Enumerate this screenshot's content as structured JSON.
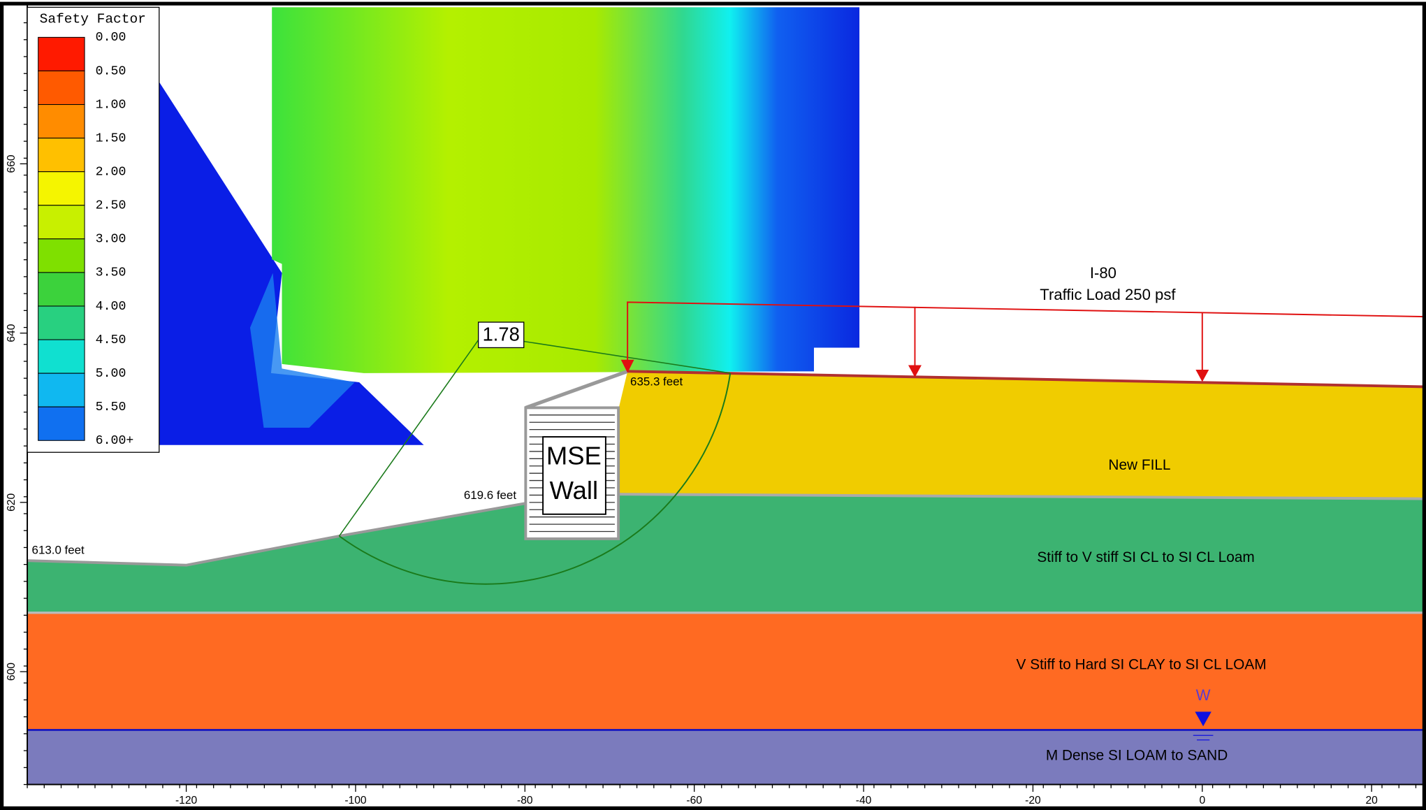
{
  "legend": {
    "title": "Safety Factor",
    "labels": [
      "0.00",
      "0.50",
      "1.00",
      "1.50",
      "2.00",
      "2.50",
      "3.00",
      "3.50",
      "4.00",
      "4.50",
      "5.00",
      "5.50",
      "6.00+"
    ],
    "colors": [
      "#ff1a00",
      "#ff5a00",
      "#ff8c00",
      "#ffc000",
      "#f5f500",
      "#c8f000",
      "#7fe000",
      "#3cd23c",
      "#28d080",
      "#10e0d0",
      "#10b8f0",
      "#1070f0"
    ]
  },
  "axes": {
    "x_ticks": [
      -120,
      -100,
      -80,
      -60,
      -40,
      -20,
      0,
      20
    ],
    "y_ticks": [
      600,
      620,
      640,
      660
    ]
  },
  "annotations": {
    "load_title": "I-80",
    "load_text": "Traffic Load 250 psf",
    "crest_elev": "635.3 feet",
    "wall_toe_elev": "619.6 feet",
    "toe_elev": "613.0 feet",
    "wall_line1": "MSE",
    "wall_line2": "Wall",
    "min_factor": "1.78",
    "water": "W"
  },
  "layers": [
    "New FILL",
    "Stiff to V stiff SI CL to SI CL Loam",
    "V Stiff to Hard SI CLAY to SI CL LOAM",
    "M Dense SI LOAM to SAND"
  ]
}
